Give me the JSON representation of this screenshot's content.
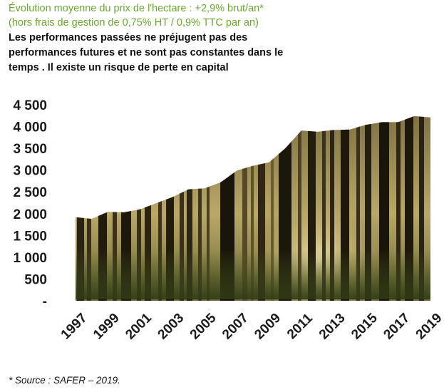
{
  "header": {
    "line1": "Évolution moyenne du prix de l'hectare : +2,9% brut/an*",
    "line2": "(hors frais de gestion de 0,75% HT / 0,9% TTC par an)",
    "disclaimer": "Les performances passées ne préjugent pas des performances futures et ne sont pas constantes dans le temps . Il existe un risque de perte en capital"
  },
  "colors": {
    "accent_green": "#6aa82f",
    "text": "#111111",
    "forest_dark": "#2b2413",
    "forest_light": "#d9c98b"
  },
  "chart_data": {
    "type": "area",
    "title": "",
    "xlabel": "",
    "ylabel": "",
    "x": [
      1997,
      1998,
      1999,
      2000,
      2001,
      2002,
      2003,
      2004,
      2005,
      2006,
      2007,
      2008,
      2009,
      2010,
      2011,
      2012,
      2013,
      2014,
      2015,
      2016,
      2017,
      2018,
      2019
    ],
    "values": [
      1920,
      1880,
      2040,
      2030,
      2100,
      2240,
      2380,
      2560,
      2580,
      2720,
      2990,
      3100,
      3180,
      3500,
      3910,
      3880,
      3920,
      3930,
      4040,
      4100,
      4100,
      4240,
      4210
    ],
    "ylim": [
      0,
      4500
    ],
    "y_ticks": [
      {
        "value": 0,
        "label": "-"
      },
      {
        "value": 500,
        "label": "500"
      },
      {
        "value": 1000,
        "label": "1 000"
      },
      {
        "value": 1500,
        "label": "1 500"
      },
      {
        "value": 2000,
        "label": "2 000"
      },
      {
        "value": 2500,
        "label": "2 500"
      },
      {
        "value": 3000,
        "label": "3 000"
      },
      {
        "value": 3500,
        "label": "3 500"
      },
      {
        "value": 4000,
        "label": "4 000"
      },
      {
        "value": 4500,
        "label": "4 500"
      }
    ],
    "x_tick_labels": [
      "1997",
      "1999",
      "2001",
      "2003",
      "2005",
      "2007",
      "2009",
      "2011",
      "2013",
      "2015",
      "2017",
      "2019"
    ],
    "fill": "forest photo texture",
    "grid": false,
    "legend": "none"
  },
  "footnote": "* Source : SAFER – 2019."
}
